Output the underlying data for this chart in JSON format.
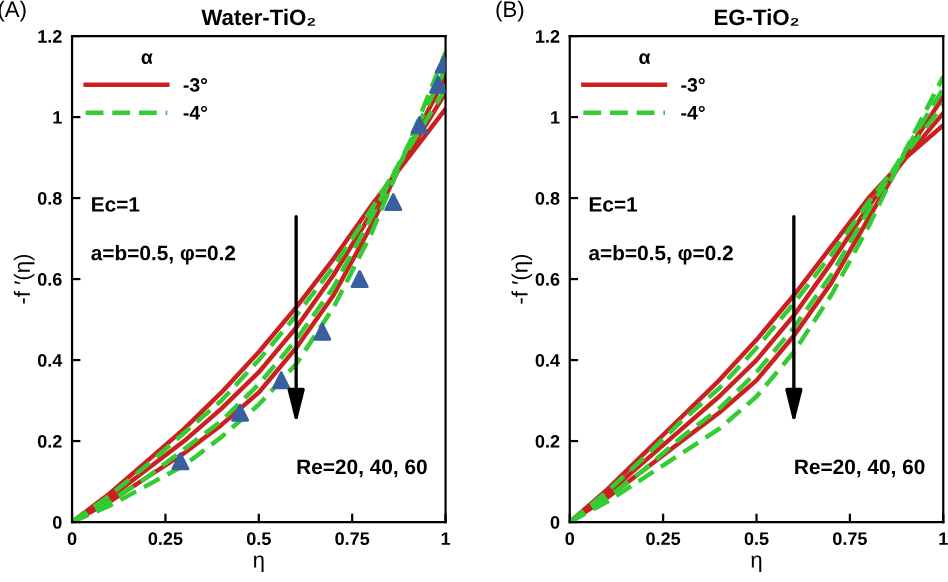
{
  "chart_data": [
    {
      "type": "line",
      "title": "Water-TiO₂",
      "xlabel": "η",
      "ylabel": "-f ′(η)",
      "legend_title": "α",
      "legend": "top left",
      "x": [
        0,
        0.1,
        0.2,
        0.3,
        0.4,
        0.5,
        0.6,
        0.7,
        0.8,
        0.9,
        1
      ],
      "xlim": [
        0,
        1
      ],
      "ylim": [
        0,
        1.2
      ],
      "xticks": [
        0,
        0.25,
        0.5,
        0.75,
        1
      ],
      "yticks": [
        0,
        0.2,
        0.4,
        0.6,
        0.8,
        1,
        1.2
      ],
      "grid": false,
      "annotations": [
        "(A)",
        "Ec=1",
        "a=b=0.5, φ=0.2",
        "Re=20, 40, 60"
      ],
      "series": [
        {
          "name": "-3°",
          "color": "#cc1f1f",
          "line_style": "solid",
          "values": [
            0,
            0.07,
            0.15,
            0.23,
            0.32,
            0.42,
            0.53,
            0.65,
            0.78,
            0.9,
            1.02
          ]
        },
        {
          "color": "#cc1f1f",
          "line_style": "solid",
          "values": [
            0,
            0.06,
            0.13,
            0.2,
            0.28,
            0.37,
            0.48,
            0.61,
            0.76,
            0.91,
            1.06
          ]
        },
        {
          "color": "#cc1f1f",
          "line_style": "solid",
          "values": [
            0,
            0.05,
            0.11,
            0.17,
            0.24,
            0.32,
            0.43,
            0.56,
            0.73,
            0.92,
            1.1
          ]
        },
        {
          "name": "-4°",
          "color": "#33cc33",
          "line_style": "dashed",
          "values": [
            0,
            0.065,
            0.14,
            0.22,
            0.3,
            0.4,
            0.51,
            0.63,
            0.77,
            0.92,
            1.07
          ]
        },
        {
          "color": "#33cc33",
          "line_style": "dashed",
          "values": [
            0,
            0.05,
            0.11,
            0.18,
            0.25,
            0.34,
            0.45,
            0.58,
            0.75,
            0.93,
            1.12
          ]
        },
        {
          "color": "#33cc33",
          "line_style": "dashed",
          "values": [
            0,
            0.04,
            0.09,
            0.14,
            0.21,
            0.29,
            0.39,
            0.53,
            0.71,
            0.93,
            1.16
          ]
        },
        {
          "type": "scatter",
          "marker": "triangle",
          "color": "#3a5f9e",
          "x": [
            0.29,
            0.45,
            0.56,
            0.67,
            0.77,
            0.86,
            0.93,
            0.98,
            0.995
          ],
          "values": [
            0.15,
            0.27,
            0.35,
            0.47,
            0.6,
            0.79,
            0.98,
            1.08,
            1.13
          ]
        }
      ]
    },
    {
      "type": "line",
      "title": "EG-TiO₂",
      "xlabel": "η",
      "ylabel": "-f ′(η)",
      "legend_title": "α",
      "legend": "top left",
      "x": [
        0,
        0.1,
        0.2,
        0.3,
        0.4,
        0.5,
        0.6,
        0.7,
        0.8,
        0.9,
        1
      ],
      "xlim": [
        0,
        1
      ],
      "ylim": [
        0,
        1.2
      ],
      "xticks": [
        0,
        0.25,
        0.5,
        0.75,
        1
      ],
      "yticks": [
        0,
        0.2,
        0.4,
        0.6,
        0.8,
        1,
        1.2
      ],
      "grid": false,
      "annotations": [
        "(B)",
        "Ec=1",
        "a=b=0.5, φ=0.2",
        "Re=20, 40, 60"
      ],
      "series": [
        {
          "name": "-3°",
          "color": "#cc1f1f",
          "line_style": "solid",
          "values": [
            0,
            0.08,
            0.17,
            0.26,
            0.35,
            0.45,
            0.56,
            0.68,
            0.8,
            0.9,
            0.98
          ]
        },
        {
          "color": "#cc1f1f",
          "line_style": "solid",
          "values": [
            0,
            0.07,
            0.15,
            0.23,
            0.31,
            0.4,
            0.51,
            0.64,
            0.78,
            0.9,
            1.01
          ]
        },
        {
          "color": "#cc1f1f",
          "line_style": "solid",
          "values": [
            0,
            0.06,
            0.13,
            0.2,
            0.27,
            0.35,
            0.46,
            0.59,
            0.75,
            0.91,
            1.05
          ]
        },
        {
          "name": "-4°",
          "color": "#33cc33",
          "line_style": "dashed",
          "values": [
            0,
            0.075,
            0.16,
            0.25,
            0.33,
            0.43,
            0.54,
            0.66,
            0.79,
            0.91,
            1.03
          ]
        },
        {
          "color": "#33cc33",
          "line_style": "dashed",
          "values": [
            0,
            0.06,
            0.13,
            0.21,
            0.28,
            0.37,
            0.48,
            0.61,
            0.77,
            0.92,
            1.07
          ]
        },
        {
          "color": "#33cc33",
          "line_style": "dashed",
          "values": [
            0,
            0.05,
            0.11,
            0.17,
            0.23,
            0.31,
            0.42,
            0.56,
            0.73,
            0.92,
            1.1
          ]
        }
      ]
    }
  ]
}
